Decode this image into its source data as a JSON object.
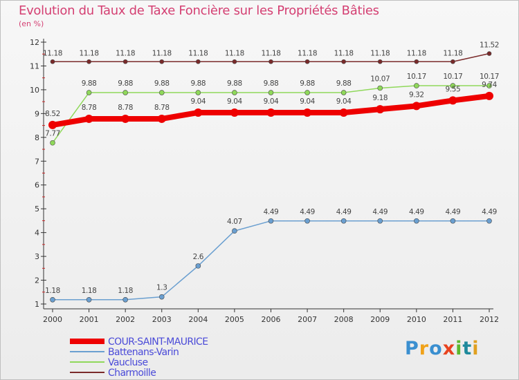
{
  "header": {
    "title": "Evolution du Taux de Taxe Foncière sur les Propriétés Bâties",
    "subtitle": "(en %)"
  },
  "logo": {
    "text": "Proxiti",
    "colors": [
      "#3a8fd0",
      "#f0a21a",
      "#3a8fd0",
      "#e8431f",
      "#5cb82e",
      "#1f8a9c",
      "#e0a020"
    ]
  },
  "chart_data": {
    "type": "line",
    "x": [
      2000,
      2001,
      2002,
      2003,
      2004,
      2005,
      2006,
      2007,
      2008,
      2009,
      2010,
      2011,
      2012
    ],
    "ylim": [
      1,
      12
    ],
    "yticks": [
      1,
      2,
      3,
      4,
      5,
      6,
      7,
      8,
      9,
      10,
      11,
      12
    ],
    "grid": false,
    "legend_position": "bottom-left",
    "series": [
      {
        "name": "Charmoille",
        "color": "#7a2a2a",
        "values": [
          11.18,
          11.18,
          11.18,
          11.18,
          11.18,
          11.18,
          11.18,
          11.18,
          11.18,
          11.18,
          11.18,
          11.18,
          11.52
        ],
        "labels": [
          "11.18",
          "11.18",
          "11.18",
          "11.18",
          "11.18",
          "11.18",
          "11.18",
          "11.18",
          "11.18",
          "11.18",
          "11.18",
          "11.18",
          "11.52"
        ]
      },
      {
        "name": "Vaucluse",
        "color": "#8fd85a",
        "values": [
          7.77,
          9.88,
          9.88,
          9.88,
          9.88,
          9.88,
          9.88,
          9.88,
          9.88,
          10.07,
          10.17,
          10.17,
          10.17
        ],
        "labels": [
          "7.77",
          "9.88",
          "9.88",
          "9.88",
          "9.88",
          "9.88",
          "9.88",
          "9.88",
          "9.88",
          "10.07",
          "10.17",
          "10.17",
          "10.17"
        ]
      },
      {
        "name": "COUR-SAINT-MAURICE",
        "color": "#ee0000",
        "values": [
          8.52,
          8.78,
          8.78,
          8.78,
          9.04,
          9.04,
          9.04,
          9.04,
          9.04,
          9.18,
          9.32,
          9.55,
          9.74
        ],
        "labels": [
          "8.52",
          "8.78",
          "8.78",
          "8.78",
          "9.04",
          "9.04",
          "9.04",
          "9.04",
          "9.04",
          "9.18",
          "9.32",
          "9.55",
          "9.74"
        ]
      },
      {
        "name": "Battenans-Varin",
        "color": "#6a9fd0",
        "values": [
          1.18,
          1.18,
          1.18,
          1.3,
          2.6,
          4.07,
          4.49,
          4.49,
          4.49,
          4.49,
          4.49,
          4.49,
          4.49
        ],
        "labels": [
          "1.18",
          "1.18",
          "1.18",
          "1.3",
          "2.6",
          "4.07",
          "4.49",
          "4.49",
          "4.49",
          "4.49",
          "4.49",
          "4.49",
          "4.49"
        ]
      }
    ],
    "legend_order": [
      "COUR-SAINT-MAURICE",
      "Battenans-Varin",
      "Vaucluse",
      "Charmoille"
    ]
  }
}
